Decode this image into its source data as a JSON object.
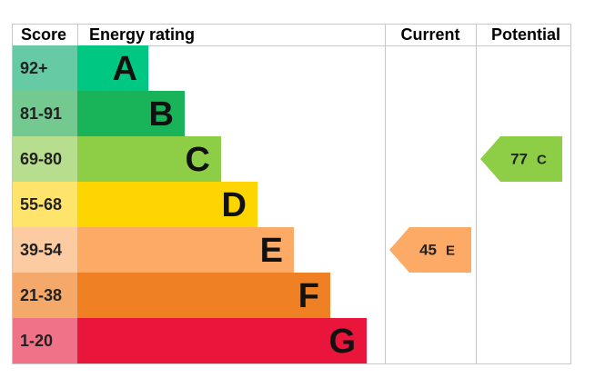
{
  "header": {
    "score": "Score",
    "energy_rating": "Energy rating",
    "current": "Current",
    "potential": "Potential"
  },
  "bands": [
    {
      "score": "92+",
      "letter": "A",
      "color": "#00c781",
      "score_color": "#66cba4"
    },
    {
      "score": "81-91",
      "letter": "B",
      "color": "#19b459",
      "score_color": "#73c98f"
    },
    {
      "score": "69-80",
      "letter": "C",
      "color": "#8dce46",
      "score_color": "#b7de8e"
    },
    {
      "score": "55-68",
      "letter": "D",
      "color": "#ffd500",
      "score_color": "#ffe46c"
    },
    {
      "score": "39-54",
      "letter": "E",
      "color": "#fcaa65",
      "score_color": "#fccba2"
    },
    {
      "score": "21-38",
      "letter": "F",
      "color": "#ef8023",
      "score_color": "#f4a86a"
    },
    {
      "score": "1-20",
      "letter": "G",
      "color": "#e9153b",
      "score_color": "#f07288"
    }
  ],
  "current": {
    "value": 45,
    "rating": "E"
  },
  "potential": {
    "value": 77,
    "rating": "C"
  }
}
